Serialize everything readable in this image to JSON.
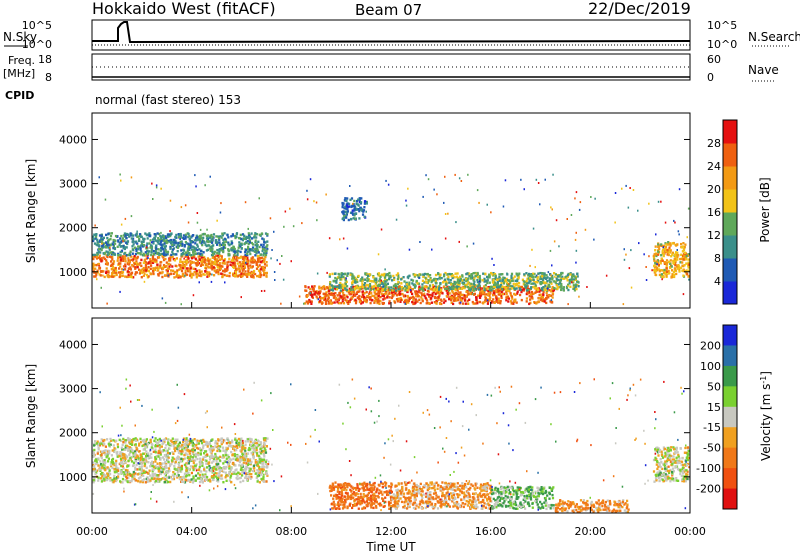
{
  "header": {
    "title": "Hokkaido West (fitACF)",
    "beam": "Beam 07",
    "date": "22/Dec/2019"
  },
  "noise_panel": {
    "left_label": "N.Sky",
    "right_label": "N.Search",
    "ticks_left": [
      "10^5",
      "10^0"
    ],
    "ticks_right": [
      "10^5",
      "10^0"
    ]
  },
  "freq_panel": {
    "left_label": "Freq.",
    "left_unit": "[MHz]",
    "right_label": "Nave",
    "ticks_left": [
      "18",
      "8"
    ],
    "ticks_right": [
      "60",
      "0"
    ]
  },
  "cpid": {
    "label": "CPID",
    "text": "normal (fast stereo) 153"
  },
  "chart_data": [
    {
      "type": "heatmap",
      "name": "power",
      "ylabel": "Slant Range [km]",
      "y_ticks": [
        "1000",
        "2000",
        "3000",
        "4000"
      ],
      "ylim": [
        180,
        4600
      ],
      "xlim": [
        0,
        24
      ],
      "colorbar": {
        "label": "Power [dB]",
        "ticks": [
          "4",
          "8",
          "12",
          "16",
          "20",
          "24",
          "28"
        ],
        "range": [
          0,
          32
        ],
        "colors": [
          "#1a28d8",
          "#1f5ab4",
          "#3a8f8a",
          "#5fa85a",
          "#f2c318",
          "#f39a14",
          "#ef6010",
          "#e51010"
        ]
      },
      "echo_bands": [
        {
          "t0": 0.0,
          "t1": 7.0,
          "r0": 900,
          "r1": 1400,
          "level": 24
        },
        {
          "t0": 0.0,
          "t1": 7.0,
          "r0": 1400,
          "r1": 1900,
          "level": 10
        },
        {
          "t0": 8.5,
          "t1": 18.5,
          "r0": 300,
          "r1": 700,
          "level": 26
        },
        {
          "t0": 9.5,
          "t1": 19.5,
          "r0": 600,
          "r1": 1000,
          "level": 14
        },
        {
          "t0": 22.5,
          "t1": 24.0,
          "r0": 900,
          "r1": 1700,
          "level": 20
        },
        {
          "t0": 10.0,
          "t1": 11.0,
          "r0": 2200,
          "r1": 2700,
          "level": 8
        }
      ]
    },
    {
      "type": "heatmap",
      "name": "velocity",
      "ylabel": "Slant Range [km]",
      "y_ticks": [
        "1000",
        "2000",
        "3000",
        "4000"
      ],
      "ylim": [
        180,
        4600
      ],
      "xlim": [
        0,
        24
      ],
      "xlabel": "Time UT",
      "x_ticks": [
        "00:00",
        "04:00",
        "08:00",
        "12:00",
        "16:00",
        "20:00",
        "00:00"
      ],
      "colorbar": {
        "label": "Velocity [m s",
        "label_sup": "-1",
        "label_end": "]",
        "ticks": [
          "200",
          "100",
          "50",
          "15",
          "-15",
          "-50",
          "-100",
          "-200"
        ],
        "colors": [
          "#1a28d8",
          "#2a70a8",
          "#3a9a4a",
          "#7ad030",
          "#c8c8c0",
          "#f0a020",
          "#f07818",
          "#f05010",
          "#e01010"
        ]
      },
      "echo_bands": [
        {
          "t0": 0.0,
          "t1": 7.0,
          "r0": 900,
          "r1": 1900,
          "v": 0
        },
        {
          "t0": 9.5,
          "t1": 12.0,
          "r0": 300,
          "r1": 900,
          "v": -60
        },
        {
          "t0": 12.0,
          "t1": 16.0,
          "r0": 300,
          "r1": 900,
          "v": -30
        },
        {
          "t0": 16.0,
          "t1": 18.5,
          "r0": 300,
          "r1": 800,
          "v": 30
        },
        {
          "t0": 18.5,
          "t1": 21.5,
          "r0": 200,
          "r1": 500,
          "v": -40
        },
        {
          "t0": 22.5,
          "t1": 24.0,
          "r0": 900,
          "r1": 1700,
          "v": 0
        }
      ]
    }
  ]
}
